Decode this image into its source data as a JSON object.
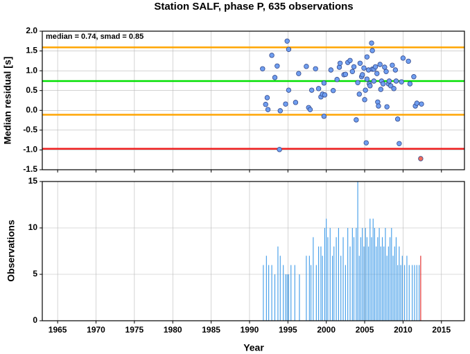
{
  "chart_data": [
    {
      "type": "scatter",
      "title": "Station SALF, phase P, 635 observations",
      "ylabel": "Median residual [s]",
      "annotation": "median = 0.74, smad = 0.85",
      "xlim": [
        1963,
        2018
      ],
      "ylim": [
        -1.5,
        2.0
      ],
      "xticks": [
        1965,
        1970,
        1975,
        1980,
        1985,
        1990,
        1995,
        2000,
        2005,
        2010,
        2015
      ],
      "yticks": [
        {
          "value": -1.5,
          "label": "-1.5"
        },
        {
          "value": -1,
          "label": "-1.0"
        },
        {
          "value": -0.5,
          "label": "-0.5"
        },
        {
          "value": 0,
          "label": "0.0"
        },
        {
          "value": 0.5,
          "label": "0.5"
        },
        {
          "value": 1,
          "label": "1.0"
        },
        {
          "value": 1.5,
          "label": "1.5"
        },
        {
          "value": 2,
          "label": "2.0"
        }
      ],
      "xticklabels": false,
      "grid": true,
      "hlines": [
        {
          "value": 1.59,
          "color": "#ffa500"
        },
        {
          "value": 0.74,
          "color": "#00e000"
        },
        {
          "value": -0.11,
          "color": "#ffa500"
        },
        {
          "value": -0.97,
          "color": "#f02020"
        }
      ],
      "series": [
        {
          "color": "#6f9ef0",
          "x": [
            1991.7,
            1992.1,
            1992.3,
            1992.4,
            1992.9,
            1993.3,
            1993.6,
            1994.0,
            1993.9,
            1994.7,
            1994.9,
            1995.1,
            1995.1,
            1996.0,
            1996.4,
            1997.4,
            1997.7,
            1997.9,
            1998.1,
            1998.6,
            1999.0,
            1999.3,
            1999.5,
            1999.7,
            1999.7,
            1999.8,
            2000.6,
            2000.9,
            2001.4,
            2001.7,
            2001.8,
            2002.3,
            2002.5,
            2002.8,
            2003.1,
            2003.4,
            2003.6,
            2003.9,
            2004.1,
            2004.3,
            2004.4,
            2004.6,
            2004.7,
            2004.9,
            2005.0,
            2005.1,
            2005.2,
            2005.3,
            2005.3,
            2005.5,
            2005.6,
            2005.7,
            2005.9,
            2006.0,
            2006.0,
            2006.2,
            2006.2,
            2006.4,
            2006.6,
            2006.7,
            2006.8,
            2007.0,
            2007.1,
            2007.2,
            2007.4,
            2007.6,
            2007.8,
            2007.9,
            2008.1,
            2008.2,
            2008.4,
            2008.6,
            2008.8,
            2009.0,
            2009.1,
            2009.3,
            2009.5,
            2009.8,
            2010.0,
            2010.7,
            2010.9,
            2011.4,
            2011.6,
            2011.8,
            2012.4
          ],
          "values": [
            1.05,
            0.15,
            0.32,
            0.02,
            1.39,
            0.83,
            1.12,
            -0.01,
            -0.99,
            0.16,
            1.75,
            1.54,
            0.51,
            0.2,
            0.93,
            1.11,
            0.07,
            0.02,
            0.51,
            1.05,
            0.55,
            0.34,
            0.41,
            0.69,
            -0.15,
            0.39,
            1.02,
            0.5,
            0.78,
            1.09,
            1.19,
            0.9,
            0.91,
            1.21,
            1.26,
            0.98,
            1.1,
            -0.24,
            0.7,
            0.41,
            1.19,
            0.85,
            0.9,
            1.07,
            0.27,
            0.51,
            -0.82,
            1.35,
            0.79,
            1.02,
            0.67,
            0.62,
            1.7,
            1.51,
            1.04,
            1.04,
            0.74,
            1.1,
            0.93,
            0.21,
            0.11,
            1.16,
            0.53,
            0.74,
            0.67,
            1.09,
            0.98,
            0.09,
            0.67,
            0.74,
            0.62,
            1.14,
            0.55,
            1.02,
            0.74,
            -0.22,
            -0.84,
            0.72,
            1.32,
            1.24,
            0.67,
            0.85,
            0.11,
            0.18,
            0.16
          ]
        },
        {
          "color": "#f26b5b",
          "x": [
            2012.3
          ],
          "values": [
            -1.22
          ]
        }
      ]
    },
    {
      "type": "bar",
      "ylabel": "Observations",
      "xlabel": "Year",
      "xlim": [
        1963,
        2018
      ],
      "ylim": [
        0,
        15
      ],
      "xticks": [
        1965,
        1970,
        1975,
        1980,
        1985,
        1990,
        1995,
        2000,
        2005,
        2010,
        2015
      ],
      "yticks": [
        0,
        5,
        10,
        15
      ],
      "xticklabels": true,
      "grid": true,
      "series": [
        {
          "color": "#3d9ae8",
          "x": [
            1991.8,
            1992.2,
            1992.5,
            1992.9,
            1993.3,
            1993.7,
            1994.0,
            1994.4,
            1994.7,
            1994.9,
            1995.1,
            1995.4,
            1995.9,
            1996.5,
            1997.4,
            1997.8,
            1998.0,
            1998.3,
            1998.7,
            1999.0,
            1999.3,
            1999.5,
            1999.8,
            2000.0,
            2000.2,
            2000.5,
            2000.8,
            2001.0,
            2001.3,
            2001.6,
            2001.9,
            2002.2,
            2002.5,
            2002.8,
            2003.1,
            2003.4,
            2003.6,
            2003.9,
            2004.1,
            2004.3,
            2004.5,
            2004.7,
            2004.9,
            2005.1,
            2005.3,
            2005.5,
            2005.7,
            2005.9,
            2006.1,
            2006.3,
            2006.5,
            2006.7,
            2006.9,
            2007.1,
            2007.3,
            2007.5,
            2007.7,
            2007.9,
            2008.1,
            2008.3,
            2008.5,
            2008.7,
            2008.9,
            2009.1,
            2009.3,
            2009.5,
            2009.7,
            2009.9,
            2010.2,
            2010.5,
            2010.8,
            2011.2,
            2011.5,
            2011.8,
            2012.1
          ],
          "values": [
            6,
            7,
            6,
            6,
            5,
            8,
            7,
            6,
            5,
            5,
            5,
            6,
            6,
            5,
            7,
            7,
            6,
            9,
            6,
            8,
            8,
            7,
            10,
            11,
            9,
            10,
            7,
            8,
            9,
            10,
            7,
            9,
            6,
            10,
            8,
            10,
            9,
            10,
            15,
            7,
            9,
            10,
            8,
            10,
            9,
            8,
            11,
            9,
            11,
            10,
            8,
            9,
            10,
            8,
            9,
            8,
            10,
            7,
            8,
            9,
            10,
            7,
            8,
            9,
            6,
            8,
            6,
            7,
            6,
            7,
            6,
            6,
            6,
            6,
            6
          ]
        },
        {
          "color": "#e02020",
          "x": [
            2012.3
          ],
          "values": [
            7
          ]
        }
      ]
    }
  ]
}
